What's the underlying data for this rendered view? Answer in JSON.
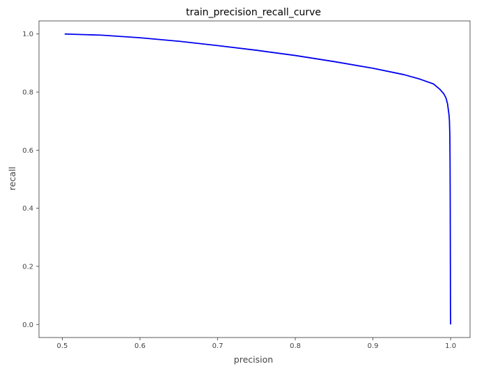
{
  "chart_data": {
    "type": "line",
    "title": "train_precision_recall_curve",
    "xlabel": "precision",
    "ylabel": "recall",
    "xlim": [
      0.47,
      1.025
    ],
    "ylim": [
      -0.045,
      1.045
    ],
    "xticks": [
      0.5,
      0.6,
      0.7,
      0.8,
      0.9,
      1.0
    ],
    "xtick_labels": [
      "0.5",
      "0.6",
      "0.7",
      "0.8",
      "0.9",
      "1.0"
    ],
    "yticks": [
      0.0,
      0.2,
      0.4,
      0.6,
      0.8,
      1.0
    ],
    "ytick_labels": [
      "0.0",
      "0.2",
      "0.4",
      "0.6",
      "0.8",
      "1.0"
    ],
    "grid": false,
    "series": [
      {
        "color": "#0000ee",
        "x": [
          0.503,
          0.55,
          0.6,
          0.65,
          0.7,
          0.75,
          0.8,
          0.85,
          0.9,
          0.94,
          0.96,
          0.978,
          0.986,
          0.991,
          0.994,
          0.996,
          0.997,
          0.998,
          0.9985,
          0.999,
          0.9993,
          0.9995,
          0.9997,
          0.9998,
          1.0
        ],
        "y": [
          1.0,
          0.996,
          0.987,
          0.975,
          0.96,
          0.944,
          0.926,
          0.905,
          0.882,
          0.86,
          0.845,
          0.828,
          0.81,
          0.795,
          0.78,
          0.76,
          0.74,
          0.72,
          0.7,
          0.65,
          0.55,
          0.4,
          0.2,
          0.05,
          0.0
        ]
      }
    ]
  }
}
